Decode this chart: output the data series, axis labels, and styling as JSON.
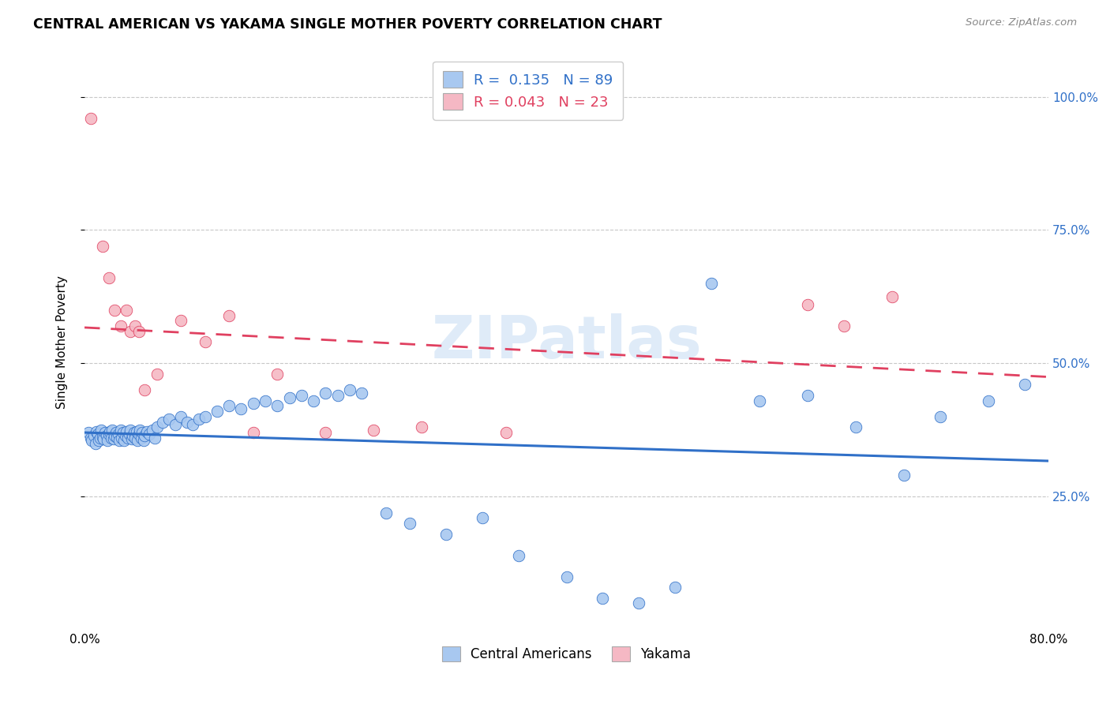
{
  "title": "CENTRAL AMERICAN VS YAKAMA SINGLE MOTHER POVERTY CORRELATION CHART",
  "source": "Source: ZipAtlas.com",
  "ylabel": "Single Mother Poverty",
  "yticks_labels": [
    "25.0%",
    "50.0%",
    "75.0%",
    "100.0%"
  ],
  "ytick_vals": [
    0.25,
    0.5,
    0.75,
    1.0
  ],
  "xlim": [
    0.0,
    0.8
  ],
  "ylim": [
    0.0,
    1.08
  ],
  "blue_R": 0.135,
  "blue_N": 89,
  "pink_R": 0.043,
  "pink_N": 23,
  "blue_color": "#A8C8F0",
  "pink_color": "#F5B8C4",
  "blue_line_color": "#3070C8",
  "pink_line_color": "#E04060",
  "watermark": "ZIPatlas",
  "legend_blue_label": "Central Americans",
  "legend_pink_label": "Yakama",
  "blue_scatter_x": [
    0.003,
    0.005,
    0.006,
    0.008,
    0.009,
    0.01,
    0.011,
    0.012,
    0.013,
    0.014,
    0.015,
    0.016,
    0.017,
    0.018,
    0.019,
    0.02,
    0.021,
    0.022,
    0.023,
    0.024,
    0.025,
    0.026,
    0.027,
    0.028,
    0.029,
    0.03,
    0.031,
    0.032,
    0.033,
    0.034,
    0.035,
    0.036,
    0.037,
    0.038,
    0.039,
    0.04,
    0.041,
    0.042,
    0.043,
    0.044,
    0.045,
    0.046,
    0.047,
    0.048,
    0.049,
    0.05,
    0.052,
    0.054,
    0.056,
    0.058,
    0.06,
    0.065,
    0.07,
    0.075,
    0.08,
    0.085,
    0.09,
    0.095,
    0.1,
    0.11,
    0.12,
    0.13,
    0.14,
    0.15,
    0.16,
    0.17,
    0.18,
    0.19,
    0.2,
    0.21,
    0.22,
    0.23,
    0.25,
    0.27,
    0.3,
    0.33,
    0.36,
    0.4,
    0.43,
    0.46,
    0.49,
    0.52,
    0.56,
    0.6,
    0.64,
    0.68,
    0.71,
    0.75,
    0.78
  ],
  "blue_scatter_y": [
    0.37,
    0.36,
    0.355,
    0.365,
    0.35,
    0.372,
    0.368,
    0.355,
    0.36,
    0.375,
    0.362,
    0.358,
    0.37,
    0.365,
    0.355,
    0.368,
    0.372,
    0.36,
    0.375,
    0.358,
    0.365,
    0.37,
    0.362,
    0.368,
    0.355,
    0.375,
    0.36,
    0.37,
    0.355,
    0.365,
    0.372,
    0.36,
    0.368,
    0.375,
    0.358,
    0.365,
    0.37,
    0.36,
    0.372,
    0.355,
    0.368,
    0.375,
    0.36,
    0.37,
    0.355,
    0.365,
    0.372,
    0.368,
    0.375,
    0.36,
    0.38,
    0.39,
    0.395,
    0.385,
    0.4,
    0.39,
    0.385,
    0.395,
    0.4,
    0.41,
    0.42,
    0.415,
    0.425,
    0.43,
    0.42,
    0.435,
    0.44,
    0.43,
    0.445,
    0.44,
    0.45,
    0.445,
    0.22,
    0.2,
    0.18,
    0.21,
    0.14,
    0.1,
    0.06,
    0.05,
    0.08,
    0.65,
    0.43,
    0.44,
    0.38,
    0.29,
    0.4,
    0.43,
    0.46
  ],
  "pink_scatter_x": [
    0.005,
    0.015,
    0.02,
    0.025,
    0.03,
    0.035,
    0.038,
    0.042,
    0.045,
    0.05,
    0.06,
    0.08,
    0.1,
    0.12,
    0.14,
    0.16,
    0.2,
    0.24,
    0.28,
    0.35,
    0.6,
    0.63,
    0.67
  ],
  "pink_scatter_y": [
    0.96,
    0.72,
    0.66,
    0.6,
    0.57,
    0.6,
    0.56,
    0.57,
    0.56,
    0.45,
    0.48,
    0.58,
    0.54,
    0.59,
    0.37,
    0.48,
    0.37,
    0.375,
    0.38,
    0.37,
    0.61,
    0.57,
    0.625
  ]
}
